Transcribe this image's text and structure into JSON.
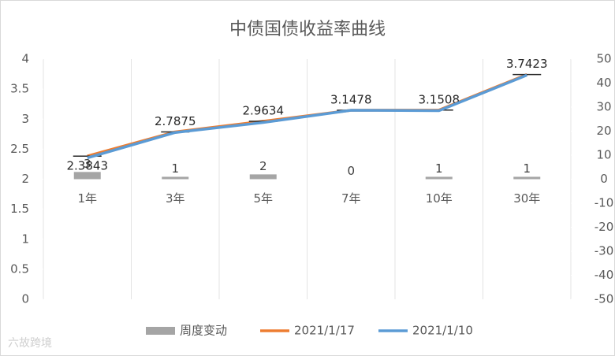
{
  "chart_data": {
    "type": "combo",
    "title": "中债国债收益率曲线",
    "categories": [
      "1年",
      "3年",
      "5年",
      "7年",
      "10年",
      "30年"
    ],
    "series": [
      {
        "name": "周度变动",
        "type": "bar",
        "axis": "y2",
        "color": "#a5a5a5",
        "values": [
          3,
          1,
          2,
          0,
          1,
          1
        ]
      },
      {
        "name": "2021/1/17",
        "type": "line",
        "color": "#ed7d31",
        "values": [
          2.3843,
          2.7875,
          2.9634,
          3.1478,
          3.1508,
          3.7423
        ]
      },
      {
        "name": "2021/1/10",
        "type": "line",
        "color": "#5b9bd5",
        "values": [
          2.3543,
          2.7775,
          2.9434,
          3.1478,
          3.1408,
          3.7323
        ]
      }
    ],
    "ylim": [
      0,
      4
    ],
    "yticks": [
      0,
      0.5,
      1,
      1.5,
      2,
      2.5,
      3,
      3.5,
      4
    ],
    "y2lim": [
      -50,
      50
    ],
    "y2ticks": [
      -50,
      -40,
      -30,
      -20,
      -10,
      0,
      10,
      20,
      30,
      40,
      50
    ],
    "legend": "bottom",
    "watermark": "六故跨境"
  }
}
